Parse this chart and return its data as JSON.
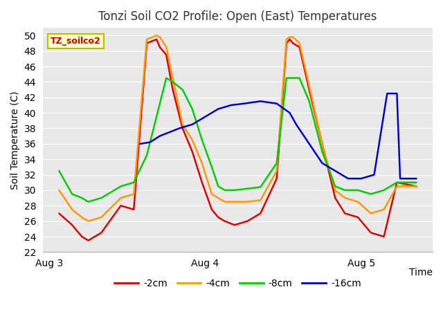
{
  "title": "Tonzi Soil CO2 Profile: Open (East) Temperatures",
  "xlabel": "Time",
  "ylabel": "Soil Temperature (C)",
  "ylim": [
    22,
    51
  ],
  "bg_color": "#e8e8e8",
  "plot_bg": "#e8e8e8",
  "legend_label": "TZ_soilco2",
  "legend_box_color": "#ffffcc",
  "legend_box_edge": "#bbbb00",
  "colors": {
    "-2cm": "#dd0000",
    "-4cm": "#ff9900",
    "-8cm": "#00cc00",
    "-16cm": "#0000cc"
  },
  "xtick_positions": [
    0,
    48,
    96
  ],
  "xtick_labels": [
    "Aug 3",
    "Aug 4",
    "Aug 5"
  ],
  "xlim": [
    -2,
    118
  ],
  "t_neg2_x": [
    3,
    7,
    10,
    12,
    16,
    22,
    26,
    30,
    33,
    34,
    36,
    38,
    41,
    44,
    47,
    50,
    52,
    54,
    57,
    61,
    65,
    70,
    73,
    74,
    75,
    77,
    80,
    84,
    88,
    91,
    95,
    99,
    103,
    107,
    113
  ],
  "t_neg2_y": [
    27,
    25.5,
    24,
    23.5,
    24.5,
    28,
    27.5,
    49,
    49.5,
    48.5,
    47.5,
    43,
    38,
    35,
    31,
    27.5,
    26.5,
    26,
    25.5,
    26,
    27,
    31.5,
    49,
    49.5,
    49,
    48.5,
    43,
    36,
    29,
    27,
    26.5,
    24.5,
    24,
    31,
    30.5
  ],
  "t_neg4_x": [
    3,
    7,
    10,
    12,
    16,
    22,
    26,
    30,
    33,
    34,
    36,
    38,
    41,
    44,
    47,
    50,
    52,
    54,
    57,
    61,
    65,
    70,
    73,
    74,
    75,
    77,
    80,
    84,
    88,
    91,
    95,
    99,
    103,
    107,
    113
  ],
  "t_neg4_y": [
    30,
    27.5,
    26.5,
    26,
    26.5,
    29,
    29.5,
    49.5,
    50,
    49.8,
    48.5,
    44.5,
    38.5,
    36.5,
    33.5,
    29.5,
    29,
    28.5,
    28.5,
    28.5,
    28.7,
    32.5,
    49.5,
    49.8,
    49.8,
    49,
    43.5,
    36,
    30,
    29,
    28.5,
    27,
    27.5,
    30.5,
    30.5
  ],
  "t_neg8_x": [
    3,
    7,
    10,
    12,
    16,
    22,
    26,
    30,
    33,
    36,
    38,
    41,
    44,
    47,
    50,
    52,
    54,
    57,
    61,
    65,
    70,
    73,
    74,
    75,
    77,
    80,
    84,
    88,
    91,
    95,
    99,
    103,
    107,
    113
  ],
  "t_neg8_y": [
    32.5,
    29.5,
    29,
    28.5,
    29,
    30.5,
    31,
    34.5,
    39.5,
    44.5,
    44,
    43,
    40.5,
    36.5,
    33,
    30.5,
    30,
    30,
    30.2,
    30.4,
    33.5,
    44.5,
    44.5,
    44.5,
    44.5,
    41.5,
    35,
    30.5,
    30,
    30,
    29.5,
    30,
    31,
    31
  ],
  "t_neg16_x": [
    28,
    31,
    34,
    37,
    40,
    44,
    48,
    52,
    56,
    60,
    65,
    70,
    74,
    76,
    80,
    84,
    88,
    92,
    96,
    100,
    104,
    107,
    108,
    109,
    113
  ],
  "t_neg16_y": [
    36,
    36.2,
    37,
    37.5,
    38,
    38.5,
    39.5,
    40.5,
    41,
    41.2,
    41.5,
    41.2,
    40,
    38.5,
    36,
    33.5,
    32.5,
    31.5,
    31.5,
    32,
    42.5,
    42.5,
    31.5,
    31.5,
    31.5
  ]
}
